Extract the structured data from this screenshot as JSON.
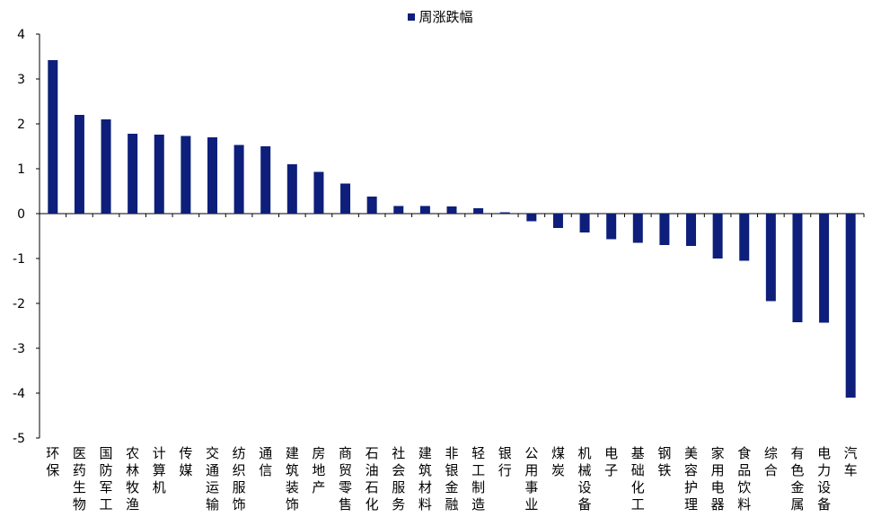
{
  "chart_data": {
    "type": "bar",
    "legend": {
      "position": "top",
      "items": [
        "周涨跌幅"
      ]
    },
    "series": [
      {
        "name": "周涨跌幅",
        "color": "#0d1f7a",
        "values": [
          3.42,
          2.2,
          2.1,
          1.78,
          1.76,
          1.73,
          1.7,
          1.53,
          1.5,
          1.1,
          0.93,
          0.67,
          0.38,
          0.17,
          0.17,
          0.16,
          0.12,
          0.03,
          -0.17,
          -0.32,
          -0.42,
          -0.57,
          -0.65,
          -0.7,
          -0.72,
          -1.0,
          -1.05,
          -1.95,
          -2.42,
          -2.43,
          -4.1
        ]
      }
    ],
    "categories": [
      "环保",
      "医药生物",
      "国防军工",
      "农林牧渔",
      "计算机",
      "传媒",
      "交通运输",
      "纺织服饰",
      "通信",
      "建筑装饰",
      "房地产",
      "商贸零售",
      "石油石化",
      "社会服务",
      "建筑材料",
      "非银金融",
      "轻工制造",
      "银行",
      "公用事业",
      "煤炭",
      "机械设备",
      "电子",
      "基础化工",
      "钢铁",
      "美容护理",
      "家用电器",
      "食品饮料",
      "综合",
      "有色金属",
      "电力设备",
      "汽车"
    ],
    "ylim": [
      -5,
      4
    ],
    "yticks": [
      "4",
      "3",
      "2",
      "1",
      "0",
      "-1",
      "-2",
      "-3",
      "-4",
      "-5"
    ],
    "grid": false
  }
}
